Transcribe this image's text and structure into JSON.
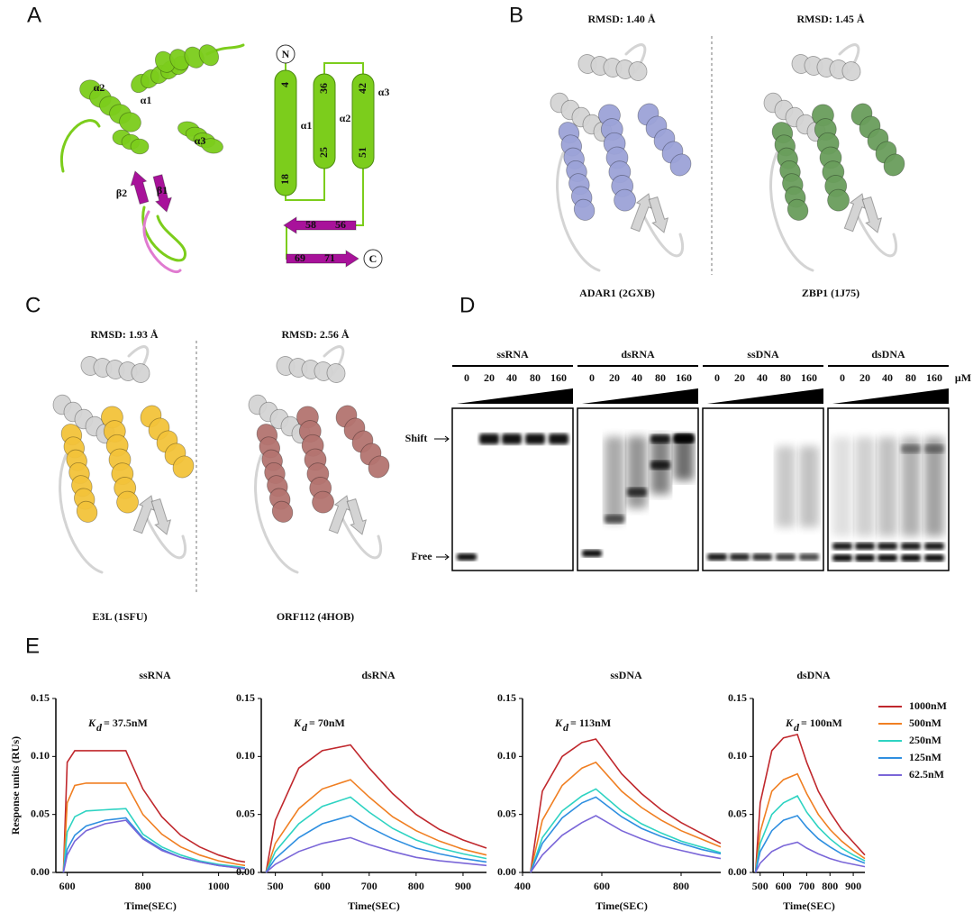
{
  "panels": {
    "A": {
      "letter": "A",
      "helix_labels": [
        "α2",
        "α1",
        "α3"
      ],
      "strand_labels": [
        "β2",
        "β1"
      ],
      "topology": {
        "n": "N",
        "c": "C",
        "helices": [
          {
            "label": "α1",
            "start": "4",
            "end": "18"
          },
          {
            "label": "α2",
            "start": "36",
            "end": "25"
          },
          {
            "label": "α3",
            "start": "42",
            "end": "51"
          }
        ],
        "strands": [
          {
            "start": "58",
            "end": "56"
          },
          {
            "start": "69",
            "end": "71"
          }
        ]
      }
    },
    "B": {
      "letter": "B",
      "left": {
        "rmsd": "RMSD: 1.40 Å",
        "name": "ADAR1 (2GXB)"
      },
      "right": {
        "rmsd": "RMSD: 1.45 Å",
        "name": "ZBP1 (1J75)"
      }
    },
    "C": {
      "letter": "C",
      "left": {
        "rmsd": "RMSD: 1.93 Å",
        "name": "E3L (1SFU)"
      },
      "right": {
        "rmsd": "RMSD: 2.56 Å",
        "name": "ORF112 (4HOB)"
      }
    },
    "D": {
      "letter": "D",
      "unit": "μM",
      "shift": "Shift",
      "free": "Free",
      "gels": [
        {
          "title": "ssRNA",
          "lanes": [
            "0",
            "20",
            "40",
            "80",
            "160"
          ]
        },
        {
          "title": "dsRNA",
          "lanes": [
            "0",
            "20",
            "40",
            "80",
            "160"
          ]
        },
        {
          "title": "ssDNA",
          "lanes": [
            "0",
            "20",
            "40",
            "80",
            "160"
          ]
        },
        {
          "title": "dsDNA",
          "lanes": [
            "0",
            "20",
            "40",
            "80",
            "160"
          ]
        }
      ]
    },
    "E": {
      "letter": "E"
    }
  },
  "chart_data": [
    {
      "type": "line",
      "title": "ssRNA",
      "ylabel": "Response units (RUs)",
      "xlabel": "Time(SEC)",
      "annotation": {
        "symbol": "K",
        "subscript": "d",
        "text": "= 37.5nM"
      },
      "xlim": [
        570,
        1070
      ],
      "xticks": [
        600,
        800,
        1000
      ],
      "ylim": [
        0,
        0.15
      ],
      "yticks": [
        {
          "value": 0,
          "label": "0.00"
        },
        {
          "value": 0.05,
          "label": "0.05"
        },
        {
          "value": 0.1,
          "label": "0.10"
        },
        {
          "value": 0.15,
          "label": "0.15"
        }
      ],
      "x": [
        590,
        600,
        620,
        650,
        700,
        755,
        800,
        850,
        900,
        950,
        1000,
        1050,
        1070
      ],
      "series": [
        {
          "color": "#c0282d",
          "values": [
            0,
            0.095,
            0.105,
            0.105,
            0.105,
            0.105,
            0.072,
            0.048,
            0.032,
            0.022,
            0.015,
            0.01,
            0.009
          ]
        },
        {
          "color": "#f07f22",
          "values": [
            0,
            0.06,
            0.075,
            0.077,
            0.077,
            0.077,
            0.05,
            0.033,
            0.022,
            0.015,
            0.01,
            0.007,
            0.006
          ]
        },
        {
          "color": "#2ed3c2",
          "values": [
            0,
            0.035,
            0.048,
            0.053,
            0.054,
            0.055,
            0.033,
            0.022,
            0.015,
            0.01,
            0.007,
            0.005,
            0.004
          ]
        },
        {
          "color": "#2f8fe0",
          "values": [
            0,
            0.02,
            0.032,
            0.04,
            0.045,
            0.047,
            0.03,
            0.02,
            0.013,
            0.009,
            0.006,
            0.004,
            0.004
          ]
        },
        {
          "color": "#7a66d8",
          "values": [
            0,
            0.015,
            0.027,
            0.036,
            0.042,
            0.045,
            0.029,
            0.019,
            0.013,
            0.009,
            0.006,
            0.004,
            0.003
          ]
        }
      ]
    },
    {
      "type": "line",
      "title": "dsRNA",
      "xlabel": "Time(SEC)",
      "annotation": {
        "symbol": "K",
        "subscript": "d",
        "text": "= 70nM"
      },
      "xlim": [
        470,
        950
      ],
      "xticks": [
        500,
        600,
        700,
        800,
        900
      ],
      "ylim": [
        0,
        0.15
      ],
      "yticks": [
        {
          "value": 0,
          "label": "0.00"
        },
        {
          "value": 0.05,
          "label": "0.05"
        },
        {
          "value": 0.1,
          "label": "0.10"
        },
        {
          "value": 0.15,
          "label": "0.15"
        }
      ],
      "x": [
        480,
        500,
        550,
        600,
        660,
        700,
        750,
        800,
        850,
        900,
        950
      ],
      "series": [
        {
          "color": "#c0282d",
          "values": [
            0,
            0.045,
            0.09,
            0.105,
            0.11,
            0.09,
            0.068,
            0.05,
            0.037,
            0.028,
            0.021
          ]
        },
        {
          "color": "#f07f22",
          "values": [
            0,
            0.025,
            0.055,
            0.072,
            0.08,
            0.065,
            0.048,
            0.036,
            0.027,
            0.02,
            0.015
          ]
        },
        {
          "color": "#2ed3c2",
          "values": [
            0,
            0.018,
            0.042,
            0.057,
            0.065,
            0.052,
            0.038,
            0.028,
            0.021,
            0.016,
            0.012
          ]
        },
        {
          "color": "#2f8fe0",
          "values": [
            0,
            0.012,
            0.03,
            0.042,
            0.049,
            0.039,
            0.029,
            0.021,
            0.016,
            0.012,
            0.009
          ]
        },
        {
          "color": "#7a66d8",
          "values": [
            0,
            0.007,
            0.018,
            0.025,
            0.03,
            0.024,
            0.018,
            0.013,
            0.01,
            0.008,
            0.006
          ]
        }
      ]
    },
    {
      "type": "line",
      "title": "ssDNA",
      "xlabel": "Time(SEC)",
      "annotation": {
        "symbol": "K",
        "subscript": "d",
        "text": "= 113nM"
      },
      "xlim": [
        400,
        900
      ],
      "xticks": [
        400,
        600,
        800
      ],
      "ylim": [
        0,
        0.15
      ],
      "yticks": [
        {
          "value": 0,
          "label": "0.00"
        },
        {
          "value": 0.05,
          "label": "0.05"
        },
        {
          "value": 0.1,
          "label": "0.10"
        },
        {
          "value": 0.15,
          "label": "0.15"
        }
      ],
      "x": [
        420,
        450,
        500,
        550,
        585,
        650,
        700,
        750,
        800,
        850,
        900
      ],
      "series": [
        {
          "color": "#c0282d",
          "values": [
            0,
            0.07,
            0.1,
            0.112,
            0.115,
            0.085,
            0.068,
            0.054,
            0.043,
            0.034,
            0.025
          ]
        },
        {
          "color": "#f07f22",
          "values": [
            0,
            0.045,
            0.075,
            0.09,
            0.095,
            0.07,
            0.056,
            0.045,
            0.036,
            0.029,
            0.022
          ]
        },
        {
          "color": "#2ed3c2",
          "values": [
            0,
            0.03,
            0.053,
            0.066,
            0.072,
            0.053,
            0.042,
            0.034,
            0.027,
            0.022,
            0.017
          ]
        },
        {
          "color": "#2f8fe0",
          "values": [
            0,
            0.025,
            0.047,
            0.06,
            0.065,
            0.048,
            0.038,
            0.031,
            0.025,
            0.02,
            0.016
          ]
        },
        {
          "color": "#7a66d8",
          "values": [
            0,
            0.015,
            0.032,
            0.043,
            0.049,
            0.036,
            0.029,
            0.023,
            0.019,
            0.015,
            0.012
          ]
        }
      ]
    },
    {
      "type": "line",
      "title": "dsDNA",
      "xlabel": "Time(SEC)",
      "legend": "right",
      "annotation": {
        "symbol": "K",
        "subscript": "d",
        "text": "= 100nM"
      },
      "xlim": [
        470,
        950
      ],
      "xticks": [
        500,
        600,
        700,
        800,
        900
      ],
      "ylim": [
        0,
        0.15
      ],
      "yticks": [
        {
          "value": 0,
          "label": "0.00"
        },
        {
          "value": 0.05,
          "label": "0.05"
        },
        {
          "value": 0.1,
          "label": "0.10"
        },
        {
          "value": 0.15,
          "label": "0.15"
        }
      ],
      "x": [
        480,
        500,
        550,
        600,
        660,
        700,
        750,
        800,
        850,
        900,
        950
      ],
      "series": [
        {
          "name": "1000nM",
          "color": "#c0282d",
          "values": [
            0,
            0.06,
            0.105,
            0.116,
            0.119,
            0.095,
            0.07,
            0.052,
            0.037,
            0.026,
            0.015
          ]
        },
        {
          "name": "500nM",
          "color": "#f07f22",
          "values": [
            0,
            0.035,
            0.07,
            0.08,
            0.085,
            0.068,
            0.05,
            0.037,
            0.027,
            0.019,
            0.012
          ]
        },
        {
          "name": "250nM",
          "color": "#2ed3c2",
          "values": [
            0,
            0.025,
            0.05,
            0.06,
            0.066,
            0.052,
            0.039,
            0.029,
            0.021,
            0.015,
            0.01
          ]
        },
        {
          "name": "125nM",
          "color": "#2f8fe0",
          "values": [
            0,
            0.018,
            0.036,
            0.045,
            0.049,
            0.039,
            0.029,
            0.022,
            0.016,
            0.012,
            0.008
          ]
        },
        {
          "name": "62.5nM",
          "color": "#7a66d8",
          "values": [
            0,
            0.008,
            0.018,
            0.023,
            0.026,
            0.021,
            0.016,
            0.012,
            0.009,
            0.007,
            0.005
          ]
        }
      ]
    }
  ]
}
